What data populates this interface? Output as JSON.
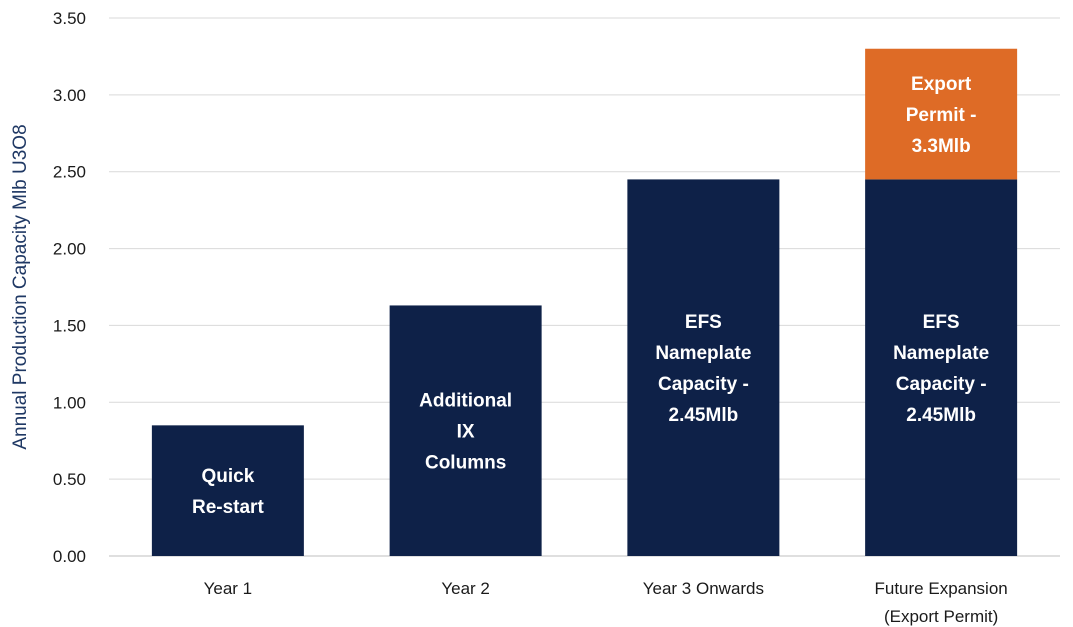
{
  "chart_data": {
    "type": "bar",
    "stacked": true,
    "title": "",
    "xlabel": "",
    "ylabel": "Annual Production Capacity Mlb U3O8",
    "ylim": [
      0,
      3.5
    ],
    "y_ticks": [
      "0.00",
      "0.50",
      "1.00",
      "1.50",
      "2.00",
      "2.50",
      "3.00",
      "3.50"
    ],
    "grid": true,
    "legend": "none",
    "categories": [
      [
        "Year 1"
      ],
      [
        "Year 2"
      ],
      [
        "Year 3 Onwards"
      ],
      [
        "Future Expansion",
        "(Export Permit)"
      ]
    ],
    "series": [
      {
        "color": "#0e2148",
        "values": [
          0.85,
          1.63,
          2.45,
          2.45
        ],
        "labels": [
          [
            "Quick",
            "Re-start"
          ],
          [
            "Additional",
            "IX",
            "Columns"
          ],
          [
            "EFS",
            "Nameplate",
            "Capacity -",
            "2.45Mlb"
          ],
          [
            "EFS",
            "Nameplate",
            "Capacity -",
            "2.45Mlb"
          ]
        ]
      },
      {
        "color": "#de6b26",
        "values": [
          0,
          0,
          0,
          0.85
        ],
        "labels": [
          [],
          [],
          [],
          [
            "Export",
            "Permit -",
            "3.3Mlb"
          ]
        ]
      }
    ]
  }
}
